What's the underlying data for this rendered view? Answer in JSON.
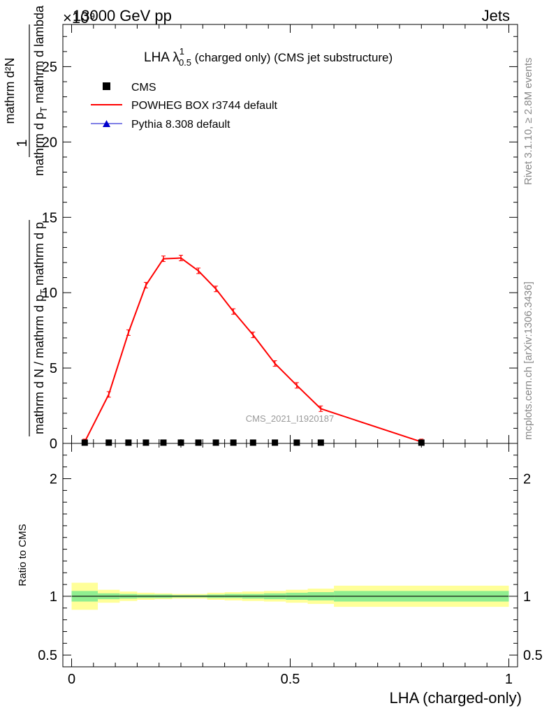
{
  "header": {
    "left": "13000 GeV pp",
    "right": "Jets",
    "exponent": "×10⁹"
  },
  "title": {
    "main": "LHA λ",
    "sup": "1",
    "sub": "0.5",
    "rest": " (charged only) (CMS jet substructure)"
  },
  "side_text": {
    "rivet": "Rivet 3.1.10, ≥ 2.8M events",
    "mcplots": "mcplots.cern.ch [arXiv:1306.3436]"
  },
  "watermark": "CMS_2021_I1920187",
  "legend": [
    {
      "label": "CMS",
      "marker": "square",
      "color": "#000000"
    },
    {
      "label": "POWHEG BOX r3744 default",
      "marker": "line",
      "color": "#ff0000"
    },
    {
      "label": "Pythia 8.308 default",
      "marker": "triangle",
      "color": "#0000cc"
    }
  ],
  "ylabel_main": {
    "num": "mathrm d²N",
    "den_a": "mathrm d p",
    "den_sub": "T",
    "den_b": " mathrm d lambda",
    "one": "1",
    "left_den_a": "mathrm d N / mathrm d p",
    "left_den_sub": "T",
    "left_den_b": " mathrm d p",
    "left_den_sub2": "T",
    "left_den_c": " mathrm d p"
  },
  "ylabel_ratio": "Ratio to CMS",
  "xlabel": "LHA (charged-only)",
  "chart_data": {
    "type": "line",
    "xlim": [
      -0.02,
      1.02
    ],
    "main": {
      "ylim": [
        0,
        27.8
      ],
      "yticks": [
        0,
        5,
        10,
        15,
        20,
        25
      ],
      "ytick_labels": [
        "0",
        "5",
        "10",
        "15",
        "20",
        "25"
      ]
    },
    "ratio": {
      "ylim": [
        0.4,
        2.3
      ],
      "yticks": [
        0.5,
        1,
        2
      ],
      "ytick_labels": [
        "0.5",
        "1",
        "2"
      ]
    },
    "xticks": [
      0,
      0.5,
      1
    ],
    "xtick_labels": [
      "0",
      "0.5",
      "1"
    ],
    "series": [
      {
        "name": "CMS",
        "x": [
          0.03,
          0.085,
          0.13,
          0.17,
          0.21,
          0.25,
          0.29,
          0.33,
          0.37,
          0.415,
          0.465,
          0.515,
          0.57,
          0.8
        ],
        "y": [
          0.05,
          0.05,
          0.05,
          0.05,
          0.05,
          0.05,
          0.05,
          0.05,
          0.05,
          0.05,
          0.05,
          0.05,
          0.05,
          0.05
        ]
      },
      {
        "name": "POWHEG BOX r3744 default",
        "x": [
          0.03,
          0.085,
          0.13,
          0.17,
          0.21,
          0.25,
          0.29,
          0.33,
          0.37,
          0.415,
          0.465,
          0.515,
          0.57,
          0.8
        ],
        "y": [
          0.1,
          3.25,
          7.35,
          10.5,
          12.25,
          12.3,
          11.45,
          10.25,
          8.75,
          7.2,
          5.3,
          3.85,
          2.3,
          0.1
        ]
      },
      {
        "name": "Pythia 8.308 default",
        "x": [],
        "y": []
      }
    ],
    "ratio_bands": {
      "edges": [
        0.0,
        0.06,
        0.11,
        0.15,
        0.19,
        0.23,
        0.27,
        0.31,
        0.35,
        0.39,
        0.44,
        0.49,
        0.54,
        0.6,
        1.0
      ],
      "inner": [
        [
          0.955,
          1.045
        ],
        [
          0.975,
          1.025
        ],
        [
          0.98,
          1.02
        ],
        [
          0.985,
          1.015
        ],
        [
          0.985,
          1.015
        ],
        [
          0.99,
          1.01
        ],
        [
          0.99,
          1.01
        ],
        [
          0.985,
          1.015
        ],
        [
          0.985,
          1.02
        ],
        [
          0.98,
          1.02
        ],
        [
          0.975,
          1.025
        ],
        [
          0.97,
          1.03
        ],
        [
          0.965,
          1.035
        ],
        [
          0.955,
          1.045
        ]
      ],
      "outer": [
        [
          0.885,
          1.115
        ],
        [
          0.945,
          1.055
        ],
        [
          0.96,
          1.04
        ],
        [
          0.97,
          1.03
        ],
        [
          0.975,
          1.025
        ],
        [
          0.98,
          1.02
        ],
        [
          0.98,
          1.02
        ],
        [
          0.97,
          1.03
        ],
        [
          0.965,
          1.035
        ],
        [
          0.96,
          1.04
        ],
        [
          0.955,
          1.045
        ],
        [
          0.945,
          1.055
        ],
        [
          0.935,
          1.065
        ],
        [
          0.91,
          1.09
        ]
      ],
      "inner_color": "#90ee90",
      "outer_color": "#ffff99"
    }
  }
}
